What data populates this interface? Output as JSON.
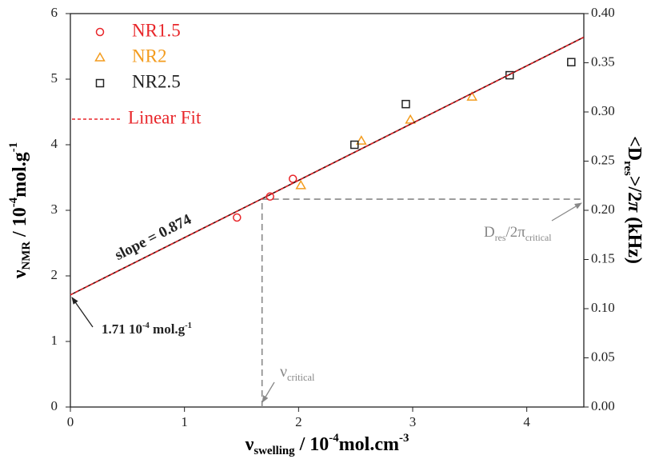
{
  "chart_data": {
    "type": "scatter",
    "x_label": [
      "ν",
      "swelling",
      " / 10",
      "-4",
      "mol.cm",
      "-3"
    ],
    "y_label": [
      "ν",
      "NMR",
      " / 10",
      "-4",
      "mol.g",
      "-1"
    ],
    "y2_label": [
      "<D",
      "res",
      ">/2",
      "π",
      "  (kHz)"
    ],
    "xlim": [
      0,
      4.5
    ],
    "xticks": [
      0,
      1,
      2,
      3,
      4
    ],
    "ylim": [
      0,
      6
    ],
    "yticks": [
      0,
      1,
      2,
      3,
      4,
      5,
      6
    ],
    "y2lim": [
      0,
      0.4
    ],
    "y2ticks": [
      {
        "value": 0,
        "label": "0.00"
      },
      0.05,
      {
        "value": 0.1,
        "label": "0.10"
      },
      0.15,
      {
        "value": 0.2,
        "label": "0.20"
      },
      0.25,
      {
        "value": 0.3,
        "label": "0.30"
      },
      0.35,
      {
        "value": 0.4,
        "label": "0.40"
      }
    ],
    "series": [
      {
        "name": "NR1.5",
        "color": "#e8262a",
        "marker": "circle",
        "x": [
          1.46,
          1.75,
          1.95
        ],
        "values": [
          2.89,
          3.21,
          3.48
        ]
      },
      {
        "name": "NR2",
        "color": "#f39c1e",
        "marker": "triangle",
        "x": [
          2.02,
          2.55,
          2.98,
          3.52
        ],
        "values": [
          3.38,
          4.06,
          4.38,
          4.73
        ]
      },
      {
        "name": "NR2.5",
        "color": "#222222",
        "marker": "square",
        "x": [
          2.49,
          2.94,
          3.85,
          4.39
        ],
        "values": [
          4.0,
          4.62,
          5.06,
          5.26
        ]
      },
      {
        "name": "Linear Fit",
        "color": "#e8262a",
        "marker": "line",
        "x": [
          0,
          4.5
        ],
        "values": [
          1.71,
          5.64
        ]
      }
    ],
    "critical": {
      "x": 1.68,
      "y": 3.17
    },
    "annotations": {
      "slope": "slope = 0.874",
      "intercept": [
        "1.71 10",
        "-4",
        " mol.g",
        "-1"
      ],
      "nu_critical": [
        "ν",
        "critical"
      ],
      "d_critical": [
        "D",
        "res",
        "/2π",
        "critical"
      ]
    }
  }
}
